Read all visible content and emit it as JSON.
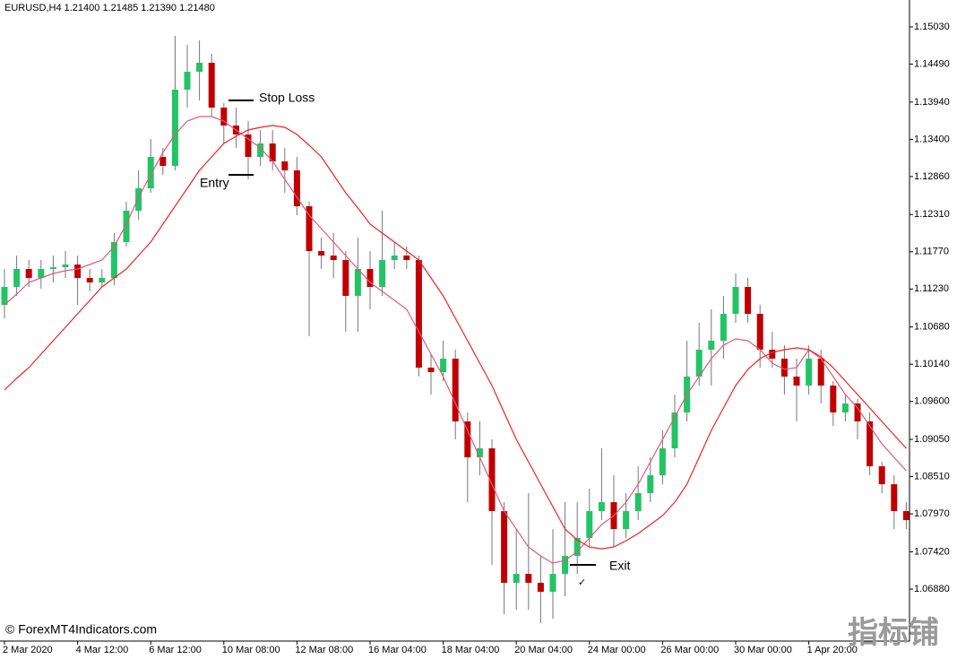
{
  "chart_data": {
    "type": "candlestick",
    "title": "EURUSD,H4  1.21400 1.21485 1.21390 1.21480",
    "up_color": "#22c466",
    "down_color": "#c00000",
    "categories": [
      "2 Mar 2020",
      null,
      null,
      null,
      null,
      null,
      "4 Mar 12:00",
      null,
      null,
      null,
      null,
      null,
      "6 Mar 12:00",
      null,
      null,
      null,
      null,
      null,
      "10 Mar 08:00",
      null,
      null,
      null,
      null,
      null,
      "12 Mar 08:00",
      null,
      null,
      null,
      null,
      null,
      "16 Mar 04:00",
      null,
      null,
      null,
      null,
      null,
      "18 Mar 04:00",
      null,
      null,
      null,
      null,
      null,
      "20 Mar 04:00",
      null,
      null,
      null,
      null,
      null,
      "24 Mar 00:00",
      null,
      null,
      null,
      null,
      null,
      "26 Mar 00:00",
      null,
      null,
      null,
      null,
      null,
      "30 Mar 00:00",
      null,
      null,
      null,
      null,
      null,
      "1 Apr 20:00",
      null,
      null,
      null,
      null,
      null,
      null,
      null,
      null
    ],
    "open": [
      1.11,
      1.1126,
      1.1152,
      1.1139,
      1.1152,
      1.11546,
      1.11585,
      1.1139,
      1.11325,
      1.1139,
      1.1191,
      1.12365,
      1.1269,
      1.13145,
      1.13015,
      1.1412,
      1.1438,
      1.1451,
      1.1386,
      1.136,
      1.1347,
      1.13145,
      1.1334,
      1.1308,
      1.1295,
      1.1243,
      1.1178,
      1.11715,
      1.1165,
      1.1113,
      1.1152,
      1.1126,
      1.1165,
      1.11715,
      1.1165,
      1.1009,
      1.10025,
      1.1022,
      1.0931,
      1.0879,
      1.0892,
      1.0801,
      1.0697,
      1.071,
      1.0697,
      1.0684,
      1.071,
      1.0736,
      1.0762,
      1.0801,
      1.0814,
      1.0775,
      1.0801,
      1.0827,
      1.0853,
      1.0892,
      1.0944,
      1.0996,
      1.1035,
      1.1048,
      1.1087,
      1.1126,
      1.1087,
      1.1035,
      1.1022,
      1.0996,
      1.0983,
      1.1022,
      1.0983,
      1.0944,
      1.0957,
      1.0931,
      1.0866,
      1.084,
      1.0801
    ],
    "high": [
      1.1152,
      1.11715,
      1.1165,
      1.1165,
      1.11715,
      1.1178,
      1.11715,
      1.1152,
      1.1152,
      1.1204,
      1.12495,
      1.1295,
      1.13405,
      1.13275,
      1.149,
      1.1477,
      1.14835,
      1.1464,
      1.13925,
      1.1386,
      1.13665,
      1.13535,
      1.13535,
      1.13275,
      1.13145,
      1.12495,
      1.11975,
      1.1204,
      1.1178,
      1.11975,
      1.1178,
      1.12365,
      1.1191,
      1.11845,
      1.11715,
      1.10285,
      1.1048,
      1.1035,
      1.0944,
      1.0931,
      1.0905,
      1.0814,
      1.0775,
      1.0827,
      1.0736,
      1.0775,
      1.0814,
      1.0814,
      1.08335,
      1.0892,
      1.0853,
      1.0827,
      1.0866,
      1.0879,
      1.0918,
      1.097,
      1.1048,
      1.1074,
      1.10935,
      1.1113,
      1.11455,
      1.1139,
      1.11,
      1.1061,
      1.10415,
      1.1022,
      1.10415,
      1.1035,
      1.09895,
      1.097,
      1.09635,
      1.0944,
      1.08725,
      1.0853,
      1.0814
    ],
    "low": [
      1.10805,
      1.1113,
      1.1126,
      1.11234,
      1.11325,
      1.1139,
      1.11,
      1.11195,
      1.1126,
      1.11286,
      1.11845,
      1.12235,
      1.12625,
      1.12885,
      1.1295,
      1.1386,
      1.13965,
      1.1373,
      1.1334,
      1.13275,
      1.1282,
      1.13015,
      1.1295,
      1.12625,
      1.123,
      1.10545,
      1.1152,
      1.1139,
      1.1061,
      1.1061,
      1.10935,
      1.1113,
      1.1152,
      1.1152,
      1.0996,
      1.097,
      1.09895,
      1.0905,
      1.0814,
      1.0853,
      1.0723,
      1.06515,
      1.0658,
      1.0658,
      1.06385,
      1.0645,
      1.06775,
      1.071,
      1.0749,
      1.0788,
      1.0749,
      1.0762,
      1.0788,
      1.0814,
      1.084,
      1.0879,
      1.0931,
      1.0983,
      1.0983,
      1.1022,
      1.1074,
      1.1074,
      1.1009,
      1.1009,
      1.097,
      1.0931,
      1.097,
      1.0957,
      1.09245,
      1.0931,
      1.0905,
      1.0853,
      1.0827,
      1.0775,
      1.0775
    ],
    "close": [
      1.1126,
      1.1152,
      1.1139,
      1.1152,
      1.11546,
      1.11585,
      1.1139,
      1.11325,
      1.1139,
      1.1191,
      1.12365,
      1.1269,
      1.13145,
      1.13015,
      1.1412,
      1.1438,
      1.1451,
      1.1386,
      1.136,
      1.1347,
      1.13145,
      1.1334,
      1.1308,
      1.1295,
      1.1243,
      1.1178,
      1.11715,
      1.1165,
      1.1113,
      1.1152,
      1.1126,
      1.1165,
      1.11715,
      1.1165,
      1.1009,
      1.10025,
      1.1022,
      1.0931,
      1.0879,
      1.0892,
      1.0801,
      1.0697,
      1.071,
      1.0697,
      1.0684,
      1.071,
      1.0736,
      1.0762,
      1.0801,
      1.0814,
      1.0775,
      1.0801,
      1.0827,
      1.0853,
      1.0892,
      1.0944,
      1.0996,
      1.1035,
      1.1048,
      1.1087,
      1.1126,
      1.1087,
      1.1035,
      1.1022,
      1.0996,
      1.0983,
      1.1022,
      1.0983,
      1.0944,
      1.0957,
      1.0931,
      1.0866,
      1.084,
      1.0801,
      1.0788
    ],
    "overlays": [
      {
        "color": "#e05a7a",
        "values": [
          1.11,
          1.11156,
          1.11325,
          1.1139,
          1.11455,
          1.11494,
          1.1152,
          1.11585,
          1.1165,
          1.11845,
          1.1217,
          1.1256,
          1.12885,
          1.1321,
          1.1347,
          1.13665,
          1.1373,
          1.1373,
          1.13665,
          1.13535,
          1.13405,
          1.13275,
          1.1308,
          1.1282,
          1.1256,
          1.123,
          1.12105,
          1.1191,
          1.11715,
          1.1152,
          1.11325,
          1.11195,
          1.11065,
          1.10935,
          1.1061,
          1.10285,
          1.0996,
          1.0957,
          1.0918,
          1.0879,
          1.084,
          1.0801,
          1.0775,
          1.0749,
          1.0736,
          1.07256,
          1.07295,
          1.07425,
          1.0762,
          1.07815,
          1.07945,
          1.0814,
          1.084,
          1.08725,
          1.0905,
          1.09375,
          1.097,
          1.0996,
          1.1022,
          1.10415,
          1.10506,
          1.1048,
          1.1035,
          1.10155,
          1.10064,
          1.1009,
          1.1035,
          1.1022,
          1.0996,
          1.097,
          1.09505,
          1.09245,
          1.08985,
          1.0879,
          1.08595
        ]
      },
      {
        "color": "#ee2222",
        "values": [
          1.09765,
          1.09934,
          1.1009,
          1.10285,
          1.1048,
          1.10675,
          1.1087,
          1.11065,
          1.1126,
          1.1139,
          1.1152,
          1.11715,
          1.1191,
          1.1217,
          1.1243,
          1.1269,
          1.1295,
          1.13145,
          1.1334,
          1.13444,
          1.13535,
          1.13574,
          1.136,
          1.13574,
          1.1347,
          1.13314,
          1.13145,
          1.12885,
          1.12625,
          1.12404,
          1.1217,
          1.1204,
          1.1191,
          1.1178,
          1.1165,
          1.1139,
          1.1113,
          1.10805,
          1.1048,
          1.10155,
          1.0983,
          1.0944,
          1.0905,
          1.08725,
          1.084,
          1.08075,
          1.0775,
          1.07594,
          1.0749,
          1.07464,
          1.0749,
          1.07581,
          1.07685,
          1.07815,
          1.07945,
          1.0814,
          1.084,
          1.0879,
          1.0918,
          1.09505,
          1.0983,
          1.10064,
          1.1022,
          1.10311,
          1.1035,
          1.10376,
          1.1035,
          1.10246,
          1.1009,
          1.09895,
          1.097,
          1.09505,
          1.0931,
          1.09115,
          1.0892
        ]
      }
    ],
    "ylim": [
      1.06126,
      1.1542
    ],
    "yticks": [
      {
        "value": 1.1503,
        "label": "1.15030"
      },
      {
        "value": 1.1449,
        "label": "1.14490"
      },
      {
        "value": 1.1394,
        "label": "1.13940"
      },
      {
        "value": 1.134,
        "label": "1.13400"
      },
      {
        "value": 1.1286,
        "label": "1.12860"
      },
      {
        "value": 1.1231,
        "label": "1.12310"
      },
      {
        "value": 1.1177,
        "label": "1.11770"
      },
      {
        "value": 1.1123,
        "label": "1.11230"
      },
      {
        "value": 1.1068,
        "label": "1.10680"
      },
      {
        "value": 1.1014,
        "label": "1.10140"
      },
      {
        "value": 1.096,
        "label": "1.09600"
      },
      {
        "value": 1.0905,
        "label": "1.09050"
      },
      {
        "value": 1.0851,
        "label": "1.08510"
      },
      {
        "value": 1.0797,
        "label": "1.07970"
      },
      {
        "value": 1.0742,
        "label": "1.07420"
      },
      {
        "value": 1.0688,
        "label": "1.06880"
      }
    ],
    "annotations": {
      "stop_loss": "Stop Loss",
      "entry": "Entry",
      "exit": "Exit",
      "exit_check": "✓"
    },
    "watermark": "© ForexMT4Indicators.com",
    "corner_mark": "指标铺"
  }
}
